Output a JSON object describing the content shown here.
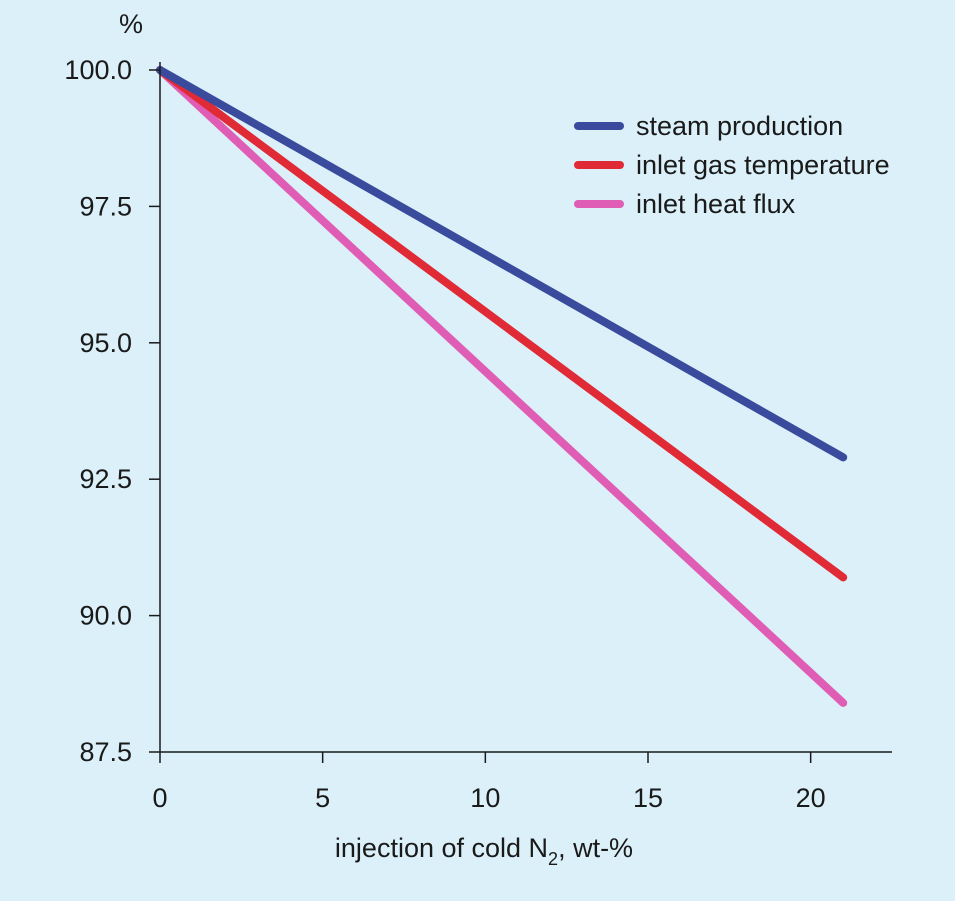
{
  "chart_data": {
    "type": "line",
    "x_ticks": [
      "0",
      "5",
      "10",
      "15",
      "20"
    ],
    "y_ticks": [
      "87.5",
      "90.0",
      "92.5",
      "95.0",
      "97.5",
      "100.0"
    ],
    "xlim": [
      0,
      22.5
    ],
    "ylim": [
      87.5,
      100.0
    ],
    "ylabel": "%",
    "xlabel": {
      "prefix": "injection of cold N",
      "subscript": "2",
      "suffix": ", wt-%"
    },
    "legend_position": "top-right",
    "grid": false,
    "series": [
      {
        "name": "steam production",
        "color": "#3a4a9c",
        "x": [
          0,
          21
        ],
        "y": [
          100.0,
          92.9
        ]
      },
      {
        "name": "inlet gas temperature",
        "color": "#e02a36",
        "x": [
          0,
          21
        ],
        "y": [
          100.0,
          90.7
        ]
      },
      {
        "name": "inlet heat flux",
        "color": "#df5db4",
        "x": [
          0,
          21
        ],
        "y": [
          100.0,
          88.4
        ]
      }
    ]
  }
}
